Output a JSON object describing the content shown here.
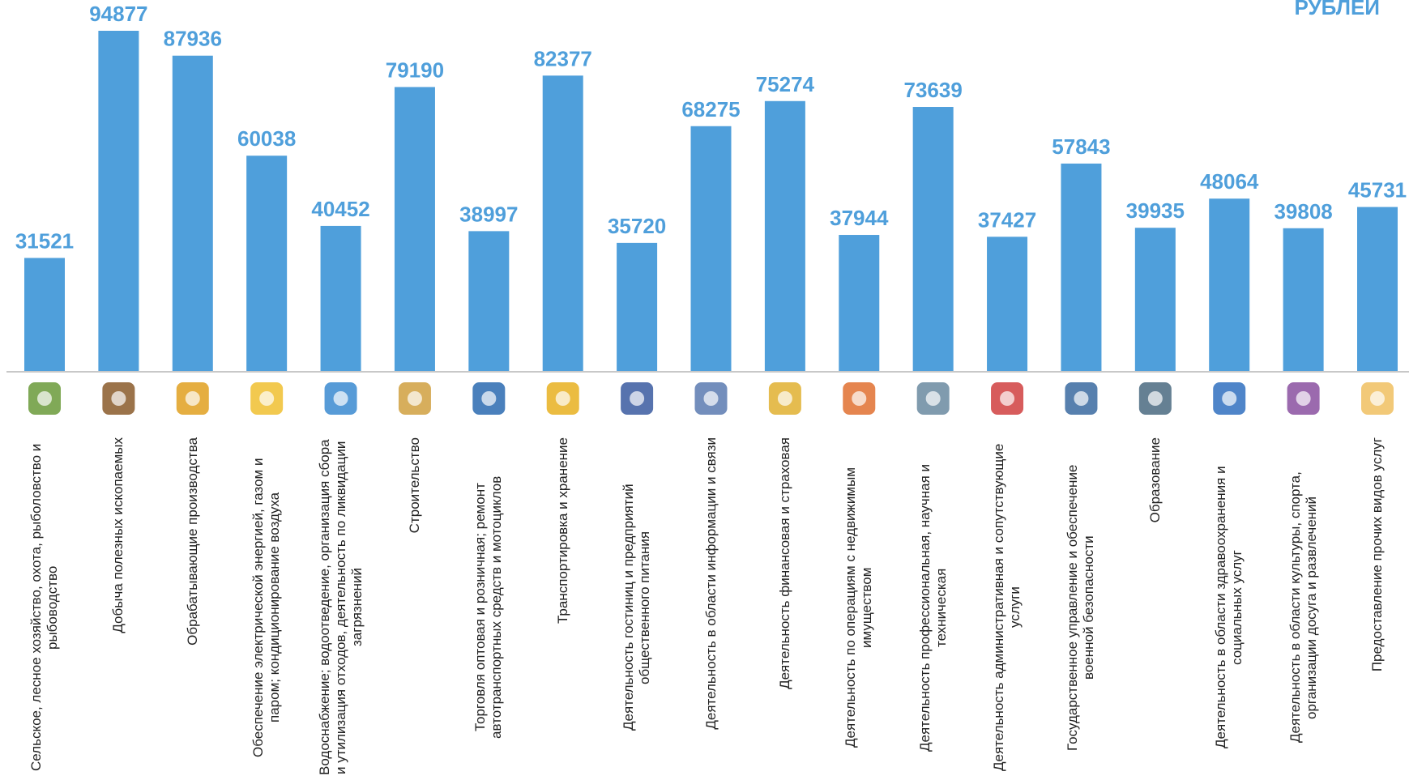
{
  "chart_data": {
    "type": "bar",
    "annotation": "РУБЛЕЙ",
    "categories": [
      "Сельское, лесное хозяйство, охота, рыболовство и рыбоводство",
      "Добыча полезных ископаемых",
      "Обрабатывающие производства",
      "Обеспечение электрической энергией, газом и паром; кондиционирование воздуха",
      "Водоснабжение; водоотведение, организация сбора и утилизация отходов, деятельность по ликвидации загрязнений",
      "Строительство",
      "Торговля оптовая и розничная; ремонт автотранспортных средств и мотоциклов",
      "Транспортировка и хранение",
      "Деятельность гостиниц и предприятий общественного питания",
      "Деятельность в области информации и связи",
      "Деятельность финансовая и страховая",
      "Деятельность по операциям с недвижимым имуществом",
      "Деятельность профессиональная, научная и техническая",
      "Деятельность административная и сопутствующие услуги",
      "Государственное управление и обеспечение военной безопасности",
      "Образование",
      "Деятельность в области здравоохранения и социальных услуг",
      "Деятельность в области культуры, спорта, организации досуга и развлечений",
      "Предоставление прочих видов услуг"
    ],
    "values": [
      31521,
      94877,
      87936,
      60038,
      40452,
      79190,
      38997,
      82377,
      35720,
      68275,
      75274,
      37944,
      73639,
      37427,
      57843,
      39935,
      48064,
      39808,
      45731
    ],
    "color": "#4f9fdb"
  }
}
